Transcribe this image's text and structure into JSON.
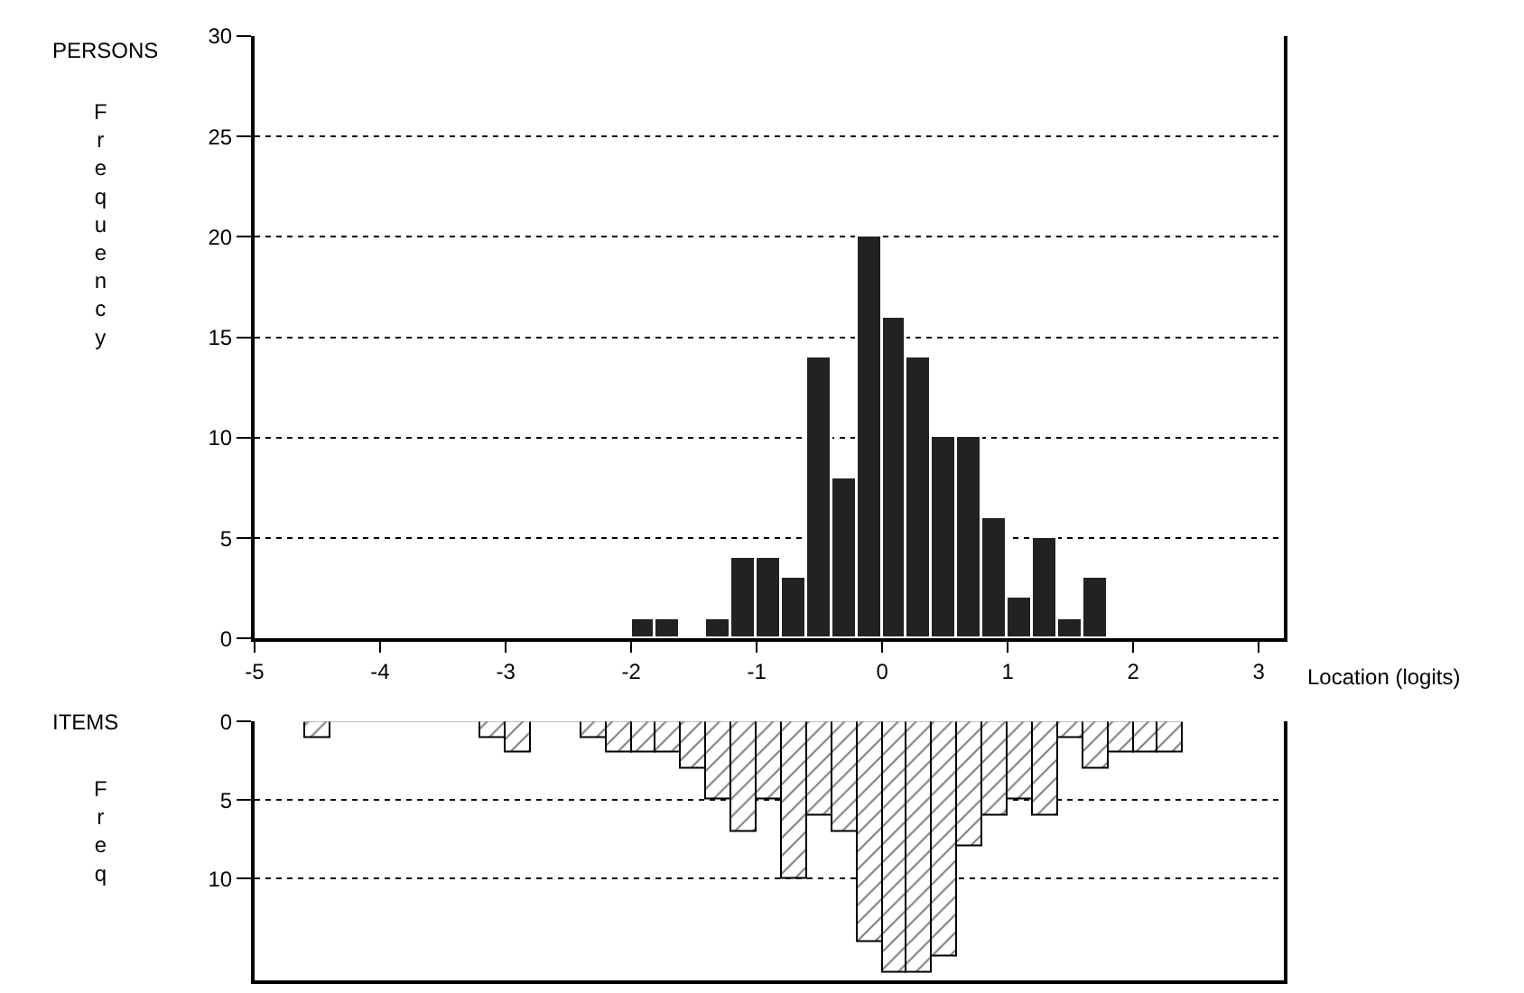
{
  "chart_data": [
    {
      "type": "histogram",
      "annotations": [
        "PERSONS"
      ],
      "ylabel": "Frequency",
      "xlabel": "Location (logits)",
      "bins": [
        -2.0,
        -1.8,
        -1.6,
        -1.4,
        -1.2,
        -1.0,
        -0.8,
        -0.6,
        -0.4,
        -0.2,
        0.0,
        0.2,
        0.4,
        0.6,
        0.8,
        1.0,
        1.2,
        1.4,
        1.6,
        1.8
      ],
      "values": [
        1,
        1,
        0,
        1,
        4,
        4,
        3,
        14,
        8,
        20,
        16,
        14,
        10,
        10,
        6,
        2,
        5,
        1,
        3
      ],
      "color": "#222222",
      "xlim": [
        -5,
        3.2
      ],
      "xticks": [
        -5,
        -4,
        -3,
        -2,
        -1,
        0,
        1,
        2,
        3
      ],
      "ylim": [
        0,
        30
      ],
      "yticks": [
        0,
        5,
        10,
        15,
        20,
        25,
        30
      ],
      "grid": "y"
    },
    {
      "type": "histogram",
      "annotations": [
        "ITEMS"
      ],
      "ylabel": "Freq",
      "bins": [
        -4.6,
        -4.4,
        -4.2,
        -4.0,
        -3.8,
        -3.6,
        -3.4,
        -3.2,
        -3.0,
        -2.8,
        -2.6,
        -2.4,
        -2.2,
        -2.0,
        -1.8,
        -1.6,
        -1.4,
        -1.2,
        -1.0,
        -0.8,
        -0.6,
        -0.4,
        -0.2,
        0.0,
        0.2,
        0.4,
        0.6,
        0.8,
        1.0,
        1.2,
        1.4,
        1.6,
        1.8,
        2.0,
        2.2,
        2.4
      ],
      "values": [
        1,
        0,
        0,
        0,
        0,
        0,
        0,
        1,
        2,
        0,
        0,
        1,
        2,
        2,
        2,
        3,
        5,
        7,
        5,
        10,
        6,
        7,
        14,
        16,
        16,
        15,
        8,
        6,
        5,
        6,
        1,
        3,
        2,
        2,
        2
      ],
      "color": "#000000",
      "xlim": [
        -5,
        3.2
      ],
      "ylim": [
        16.5,
        0
      ],
      "yticks": [
        0,
        5,
        10
      ],
      "grid": "y",
      "tick_labels": "y"
    }
  ]
}
